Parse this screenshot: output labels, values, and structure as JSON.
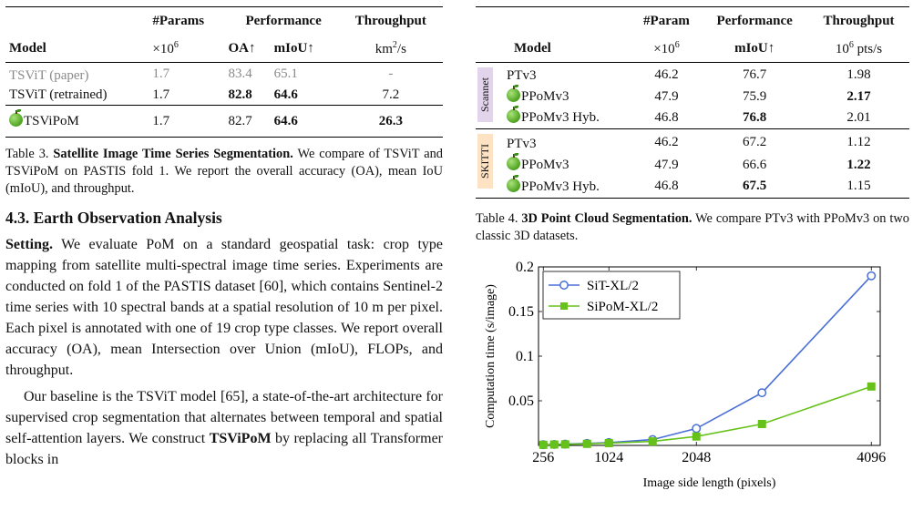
{
  "table3": {
    "header": {
      "model": "Model",
      "params": "#Params",
      "params_unit": "×10",
      "params_exp": "6",
      "performance": "Performance",
      "oa": "OA↑",
      "miou": "mIoU↑",
      "throughput": "Throughput",
      "throughput_unit": "km",
      "throughput_exp": "2",
      "throughput_unit_tail": "/s"
    },
    "rows": [
      {
        "model": "TSViT (paper)",
        "params": "1.7",
        "oa": "83.4",
        "miou": "65.1",
        "throughput": "-"
      },
      {
        "model": "TSViT (retrained)",
        "params": "1.7",
        "oa": "82.8",
        "miou": "64.6",
        "throughput": "7.2"
      },
      {
        "model": "TSViPoM",
        "params": "1.7",
        "oa": "82.7",
        "miou": "64.6",
        "throughput": "26.3"
      }
    ],
    "caption_label": "Table 3.",
    "caption_title": "Satellite Image Time Series Segmentation.",
    "caption_text": " We compare of TSViT and TSViPoM on PASTIS fold 1. We report the overall accuracy (OA), mean IoU (mIoU), and throughput."
  },
  "section": {
    "title": "4.3. Earth Observation Analysis",
    "para1_lead": "Setting.",
    "para1": " We evaluate PoM on a standard geospatial task: crop type mapping from satellite multi-spectral image time series. Experiments are conducted on fold 1 of the PASTIS dataset [60], which contains Sentinel-2 time series with 10 spectral bands at a spatial resolution of 10 m per pixel. Each pixel is annotated with one of 19 crop type classes. We report overall accuracy (OA), mean Intersection over Union (mIoU), FLOPs, and throughput.",
    "para2_a": "Our baseline is the TSViT model [65], a state-of-the-art architecture for supervised crop segmentation that alternates between temporal and spatial self-attention layers. We construct ",
    "para2_bold": "TSViPoM",
    "para2_b": " by replacing all Transformer blocks in"
  },
  "table4": {
    "header": {
      "model": "Model",
      "param": "#Param",
      "param_unit": "×10",
      "param_exp": "6",
      "performance": "Performance",
      "miou": "mIoU↑",
      "throughput": "Throughput",
      "tp_unit_a": "10",
      "tp_unit_exp": "6",
      "tp_unit_b": " pts/s"
    },
    "groups": [
      {
        "label": "Scannet",
        "rows": [
          {
            "model": "PTv3",
            "param": "46.2",
            "miou": "76.7",
            "throughput": "1.98"
          },
          {
            "model": "PPoMv3",
            "param": "47.9",
            "miou": "75.9",
            "throughput": "2.17"
          },
          {
            "model": "PPoMv3 Hyb.",
            "param": "46.8",
            "miou": "76.8",
            "throughput": "2.01"
          }
        ]
      },
      {
        "label": "SKITTI",
        "rows": [
          {
            "model": "PTv3",
            "param": "46.2",
            "miou": "67.2",
            "throughput": "1.12"
          },
          {
            "model": "PPoMv3",
            "param": "47.9",
            "miou": "66.6",
            "throughput": "1.22"
          },
          {
            "model": "PPoMv3 Hyb.",
            "param": "46.8",
            "miou": "67.5",
            "throughput": "1.15"
          }
        ]
      }
    ],
    "caption_label": "Table 4.",
    "caption_title": "3D Point Cloud Segmentation.",
    "caption_text": " We compare PTv3 with PPoMv3 on two classic 3D datasets."
  },
  "chart_data": {
    "type": "line",
    "xlabel": "Image side length (pixels)",
    "ylabel": "Computation time (s/image)",
    "xlim": [
      200,
      4200
    ],
    "ylim": [
      0,
      0.2
    ],
    "x_ticks": [
      256,
      1024,
      2048,
      4096
    ],
    "y_ticks": [
      0.05,
      0.1,
      0.15,
      0.2
    ],
    "y_tick_labels": [
      "0.05",
      "0.1",
      "0.15",
      "0.2"
    ],
    "legend_position": "top-left",
    "series": [
      {
        "name": "SiT-XL/2",
        "color": "#4a6fd6",
        "marker": "circle",
        "x": [
          256,
          384,
          512,
          768,
          1024,
          1536,
          2048,
          2816,
          4096
        ],
        "y": [
          0.0008,
          0.0011,
          0.0014,
          0.0022,
          0.0032,
          0.0065,
          0.019,
          0.059,
          0.19
        ]
      },
      {
        "name": "SiPoM-XL/2",
        "color": "#66c21a",
        "marker": "square",
        "x": [
          256,
          384,
          512,
          768,
          1024,
          1536,
          2048,
          2816,
          4096
        ],
        "y": [
          0.0007,
          0.001,
          0.0012,
          0.0018,
          0.0026,
          0.0045,
          0.01,
          0.024,
          0.066
        ]
      }
    ]
  }
}
